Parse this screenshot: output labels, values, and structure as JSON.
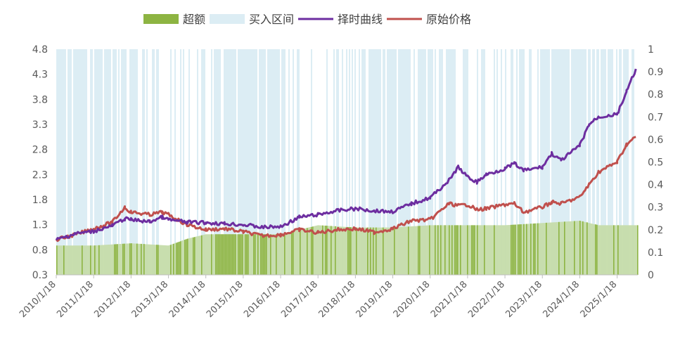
{
  "chart_data": {
    "type": "line",
    "x_dates": [
      "2010/1/18",
      "2011/1/18",
      "2012/1/18",
      "2013/1/18",
      "2014/1/18",
      "2015/1/18",
      "2016/1/18",
      "2017/1/18",
      "2018/1/18",
      "2019/1/18",
      "2020/1/18",
      "2021/1/18",
      "2022/1/18",
      "2023/1/18",
      "2024/1/18",
      "2025/1/18"
    ],
    "y_left": {
      "ylim": [
        0.3,
        4.8
      ],
      "ticks": [
        "0.3",
        "0.8",
        "1.3",
        "1.8",
        "2.3",
        "2.8",
        "3.3",
        "3.8",
        "4.3",
        "4.8"
      ]
    },
    "y_right": {
      "ylim": [
        0,
        1
      ],
      "ticks": [
        "0",
        "0.1",
        "0.2",
        "0.3",
        "0.4",
        "0.5",
        "0.6",
        "0.7",
        "0.8",
        "0.9",
        "1"
      ]
    },
    "legend": {
      "placement": "top",
      "items": [
        {
          "key": "excess",
          "label": "超额",
          "color": "#8db442",
          "symbol": "bar"
        },
        {
          "key": "buy_interval",
          "label": "买入区间",
          "color": "#dcedf4",
          "symbol": "bar"
        },
        {
          "key": "timing_curve",
          "label": "择时曲线",
          "color": "#6d2ea0",
          "symbol": "line"
        },
        {
          "key": "original_price",
          "label": "原始价格",
          "color": "#c0504d",
          "symbol": "line"
        }
      ]
    },
    "series": [
      {
        "key": "timing_curve",
        "name": "择时曲线",
        "axis": "left",
        "color": "#6d2ea0",
        "points": [
          [
            "2010/1/18",
            1.0
          ],
          [
            "2010/7/18",
            1.12
          ],
          [
            "2011/1/18",
            1.17
          ],
          [
            "2011/7/18",
            1.28
          ],
          [
            "2011/11/18",
            1.42
          ],
          [
            "2012/1/18",
            1.4
          ],
          [
            "2012/7/18",
            1.36
          ],
          [
            "2012/11/18",
            1.45
          ],
          [
            "2013/1/18",
            1.4
          ],
          [
            "2013/7/18",
            1.35
          ],
          [
            "2014/1/18",
            1.34
          ],
          [
            "2014/7/18",
            1.32
          ],
          [
            "2015/1/18",
            1.3
          ],
          [
            "2015/7/18",
            1.25
          ],
          [
            "2016/1/18",
            1.26
          ],
          [
            "2016/7/18",
            1.45
          ],
          [
            "2017/1/18",
            1.5
          ],
          [
            "2017/7/18",
            1.58
          ],
          [
            "2018/1/18",
            1.62
          ],
          [
            "2018/7/18",
            1.58
          ],
          [
            "2019/1/18",
            1.56
          ],
          [
            "2019/7/18",
            1.72
          ],
          [
            "2020/1/18",
            1.84
          ],
          [
            "2020/7/18",
            2.18
          ],
          [
            "2020/10/18",
            2.45
          ],
          [
            "2021/1/18",
            2.25
          ],
          [
            "2021/4/18",
            2.15
          ],
          [
            "2021/7/18",
            2.3
          ],
          [
            "2022/1/18",
            2.42
          ],
          [
            "2022/4/18",
            2.52
          ],
          [
            "2022/7/18",
            2.38
          ],
          [
            "2023/1/18",
            2.45
          ],
          [
            "2023/4/18",
            2.72
          ],
          [
            "2023/7/18",
            2.58
          ],
          [
            "2024/1/18",
            2.88
          ],
          [
            "2024/4/18",
            3.3
          ],
          [
            "2024/7/18",
            3.45
          ],
          [
            "2025/1/18",
            3.5
          ],
          [
            "2025/4/18",
            3.95
          ],
          [
            "2025/7/18",
            4.4
          ]
        ]
      },
      {
        "key": "original_price",
        "name": "原始价格",
        "axis": "left",
        "color": "#c0504d",
        "points": [
          [
            "2010/1/18",
            1.0
          ],
          [
            "2010/7/18",
            1.1
          ],
          [
            "2011/1/18",
            1.22
          ],
          [
            "2011/7/18",
            1.35
          ],
          [
            "2011/11/18",
            1.65
          ],
          [
            "2012/1/18",
            1.55
          ],
          [
            "2012/7/18",
            1.5
          ],
          [
            "2012/11/18",
            1.55
          ],
          [
            "2013/1/18",
            1.5
          ],
          [
            "2013/7/18",
            1.3
          ],
          [
            "2014/1/18",
            1.2
          ],
          [
            "2014/7/18",
            1.22
          ],
          [
            "2015/1/18",
            1.16
          ],
          [
            "2015/7/18",
            1.08
          ],
          [
            "2016/1/18",
            1.1
          ],
          [
            "2016/7/18",
            1.2
          ],
          [
            "2017/1/18",
            1.14
          ],
          [
            "2017/7/18",
            1.2
          ],
          [
            "2018/1/18",
            1.22
          ],
          [
            "2018/7/18",
            1.15
          ],
          [
            "2019/1/18",
            1.22
          ],
          [
            "2019/7/18",
            1.38
          ],
          [
            "2020/1/18",
            1.4
          ],
          [
            "2020/7/18",
            1.72
          ],
          [
            "2020/10/18",
            1.68
          ],
          [
            "2021/1/18",
            1.7
          ],
          [
            "2021/4/18",
            1.6
          ],
          [
            "2021/7/18",
            1.62
          ],
          [
            "2022/1/18",
            1.7
          ],
          [
            "2022/4/18",
            1.72
          ],
          [
            "2022/7/18",
            1.55
          ],
          [
            "2023/1/18",
            1.65
          ],
          [
            "2023/4/18",
            1.75
          ],
          [
            "2023/7/18",
            1.72
          ],
          [
            "2024/1/18",
            1.85
          ],
          [
            "2024/4/18",
            2.1
          ],
          [
            "2024/7/18",
            2.35
          ],
          [
            "2025/1/18",
            2.55
          ],
          [
            "2025/4/18",
            2.9
          ],
          [
            "2025/7/18",
            3.05
          ]
        ]
      },
      {
        "key": "excess",
        "name": "超额",
        "axis": "right",
        "color": "#8db442",
        "type": "area",
        "points": [
          [
            "2010/1/18",
            0.13
          ],
          [
            "2011/1/18",
            0.13
          ],
          [
            "2012/1/18",
            0.14
          ],
          [
            "2013/1/18",
            0.13
          ],
          [
            "2013/7/18",
            0.16
          ],
          [
            "2014/1/18",
            0.18
          ],
          [
            "2015/1/18",
            0.18
          ],
          [
            "2016/1/18",
            0.18
          ],
          [
            "2017/1/18",
            0.22
          ],
          [
            "2018/1/18",
            0.21
          ],
          [
            "2019/1/18",
            0.21
          ],
          [
            "2020/1/18",
            0.22
          ],
          [
            "2021/1/18",
            0.22
          ],
          [
            "2022/1/18",
            0.22
          ],
          [
            "2023/1/18",
            0.23
          ],
          [
            "2024/1/18",
            0.24
          ],
          [
            "2024/7/18",
            0.22
          ],
          [
            "2025/7/18",
            0.22
          ]
        ]
      }
    ]
  }
}
